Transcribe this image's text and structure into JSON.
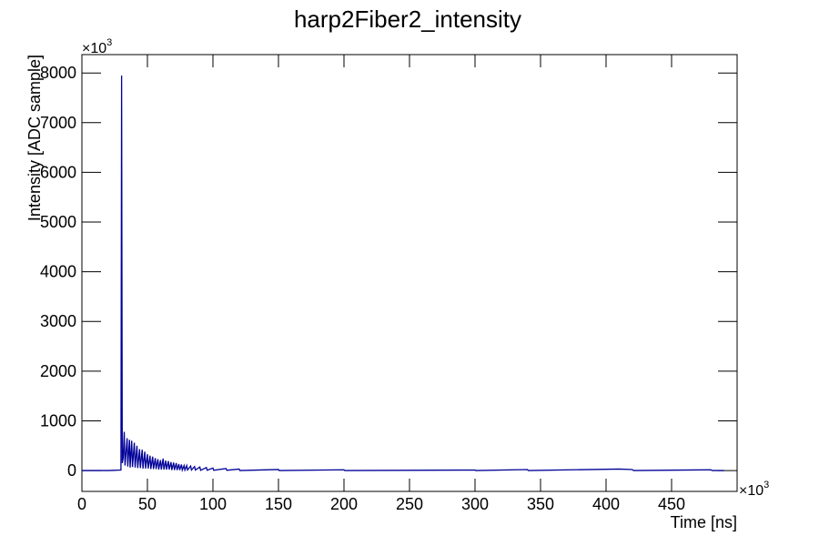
{
  "chart_data": {
    "type": "line",
    "title": "harp2Fiber2_intensity",
    "x_label": "Time [ns]",
    "y_label": "Intensity [ADC sample]",
    "x_multiplier": {
      "base": "×10",
      "exponent": "3"
    },
    "y_multiplier": {
      "base": "×10",
      "exponent": "3"
    },
    "color": "#000099",
    "x": [
      0,
      20,
      25,
      29.8,
      30.3,
      30.8,
      31.5,
      32.3,
      32.9,
      34.5,
      35,
      36.3,
      36.8,
      38,
      38.6,
      40,
      40.6,
      42,
      42.6,
      44,
      44.6,
      46,
      46.6,
      48,
      48.6,
      50,
      50.6,
      52,
      52.6,
      54,
      54.6,
      56,
      56.6,
      58,
      58.6,
      60,
      60.6,
      62,
      62.6,
      64,
      64.6,
      66,
      66.6,
      68,
      68.6,
      70,
      70.6,
      72,
      72.6,
      74,
      74.6,
      76,
      76.6,
      78,
      78.6,
      80,
      80.6,
      83,
      83.6,
      86,
      86.6,
      90,
      90.6,
      95,
      95.6,
      100,
      100.6,
      110,
      110.6,
      120,
      120.6,
      150,
      150.6,
      200,
      200.6,
      300,
      300.6,
      340,
      340.6,
      410,
      420,
      421,
      480,
      481,
      490
    ],
    "values": [
      0,
      0,
      5,
      10,
      7950,
      150,
      250,
      780,
      100,
      650,
      80,
      620,
      60,
      600,
      70,
      560,
      60,
      500,
      50,
      430,
      50,
      420,
      40,
      380,
      40,
      330,
      40,
      300,
      30,
      280,
      30,
      250,
      30,
      230,
      20,
      210,
      20,
      240,
      20,
      200,
      20,
      190,
      20,
      170,
      10,
      160,
      10,
      150,
      10,
      130,
      10,
      120,
      10,
      100,
      10,
      100,
      10,
      90,
      10,
      80,
      10,
      70,
      5,
      60,
      5,
      50,
      5,
      40,
      5,
      30,
      0,
      20,
      0,
      15,
      0,
      10,
      0,
      20,
      0,
      30,
      20,
      0,
      15,
      0,
      0
    ],
    "xlim": [
      0,
      500
    ],
    "ylim": [
      -420,
      8370
    ],
    "xticks": [
      0,
      50,
      100,
      150,
      200,
      250,
      300,
      350,
      400,
      450
    ],
    "yticks": [
      0,
      1000,
      2000,
      3000,
      4000,
      5000,
      6000,
      7000,
      8000
    ],
    "grid": false
  }
}
